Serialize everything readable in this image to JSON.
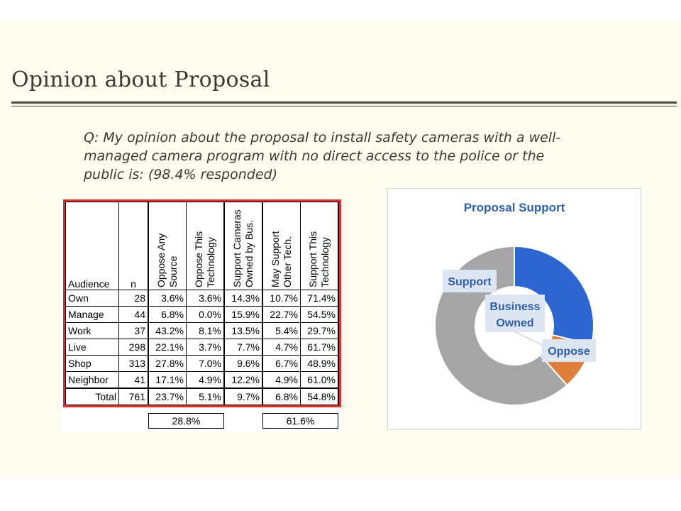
{
  "page": {
    "title": "Opinion about Proposal",
    "question": "Q: My opinion about the proposal to install safety cameras with a well-managed camera program with no direct access to the police or the public is: (98.4% responded)"
  },
  "table": {
    "headers": {
      "audience": "Audience",
      "n": "n",
      "cols": [
        [
          "Oppose Any",
          "Source"
        ],
        [
          "Oppose This",
          "Technology"
        ],
        [
          "Support Cameras",
          "Owned by Bus."
        ],
        [
          "May Support",
          "Other Tech."
        ],
        [
          "Support This",
          "Technology"
        ]
      ]
    },
    "rows": [
      {
        "label": "Own",
        "n": "28",
        "vals": [
          "3.6%",
          "3.6%",
          "14.3%",
          "10.7%",
          "71.4%"
        ]
      },
      {
        "label": "Manage",
        "n": "44",
        "vals": [
          "6.8%",
          "0.0%",
          "15.9%",
          "22.7%",
          "54.5%"
        ]
      },
      {
        "label": "Work",
        "n": "37",
        "vals": [
          "43.2%",
          "8.1%",
          "13.5%",
          "5.4%",
          "29.7%"
        ]
      },
      {
        "label": "Live",
        "n": "298",
        "vals": [
          "22.1%",
          "3.7%",
          "7.7%",
          "4.7%",
          "61.7%"
        ]
      },
      {
        "label": "Shop",
        "n": "313",
        "vals": [
          "27.8%",
          "7.0%",
          "9.6%",
          "6.7%",
          "48.9%"
        ]
      },
      {
        "label": "Neighbor",
        "n": "41",
        "vals": [
          "17.1%",
          "4.9%",
          "12.2%",
          "4.9%",
          "61.0%"
        ]
      }
    ],
    "total": {
      "label": "Total",
      "n": "761",
      "vals": [
        "23.7%",
        "5.1%",
        "9.7%",
        "6.8%",
        "54.8%"
      ]
    },
    "groups": [
      {
        "label": "28.8%"
      },
      {
        "label": "61.6%"
      }
    ],
    "border_color": "#d9322b"
  },
  "chart_data": {
    "type": "pie",
    "title": "Proposal Support",
    "slices": [
      {
        "label": "Oppose",
        "value": 28.8,
        "color": "#2e66d1"
      },
      {
        "label": "Business Owned",
        "value": 9.7,
        "color": "#e07e3c"
      },
      {
        "label": "Support",
        "value": 61.6,
        "color": "#a5a5a5"
      }
    ],
    "label_color": "#2e5fad",
    "label_bg": "#dde5f3"
  }
}
